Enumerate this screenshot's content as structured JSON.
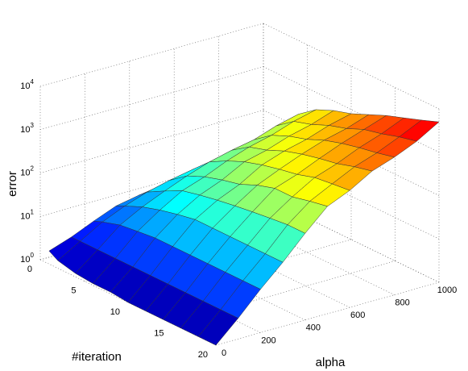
{
  "chart_data": {
    "type": "surface",
    "xlabel": "alpha",
    "ylabel": "#iteration",
    "zlabel": "error",
    "x": [
      0,
      100,
      200,
      300,
      400,
      500,
      600,
      700,
      800,
      900,
      1000
    ],
    "y": [
      1,
      2,
      4,
      6,
      8,
      10,
      12,
      14,
      16,
      18,
      20
    ],
    "z": [
      [
        2,
        3,
        5,
        8,
        10,
        12,
        14,
        16,
        18,
        20,
        22
      ],
      [
        1.5,
        3,
        6,
        10,
        15,
        20,
        25,
        30,
        40,
        50,
        60
      ],
      [
        1.2,
        3,
        8,
        15,
        25,
        40,
        60,
        80,
        100,
        150,
        200
      ],
      [
        1.1,
        3,
        9,
        20,
        40,
        60,
        100,
        150,
        200,
        300,
        400
      ],
      [
        1.1,
        3,
        10,
        25,
        50,
        80,
        150,
        200,
        300,
        400,
        600
      ],
      [
        1,
        3,
        10,
        30,
        60,
        100,
        200,
        300,
        400,
        600,
        800
      ],
      [
        1,
        3,
        10,
        30,
        70,
        150,
        250,
        400,
        600,
        800,
        1200
      ],
      [
        1,
        3,
        10,
        30,
        80,
        200,
        300,
        500,
        800,
        1200,
        1800
      ],
      [
        1,
        3,
        10,
        30,
        90,
        200,
        400,
        600,
        1000,
        1500,
        2500
      ],
      [
        1,
        3,
        10,
        30,
        100,
        250,
        450,
        800,
        1200,
        2000,
        3500
      ],
      [
        1,
        3,
        10,
        30,
        100,
        300,
        500,
        1000,
        1500,
        2500,
        5000
      ]
    ],
    "xlim": [
      0,
      1000
    ],
    "xticks": [
      0,
      200,
      400,
      600,
      800,
      1000
    ],
    "ylim": [
      0,
      20
    ],
    "yticks": [
      0,
      5,
      10,
      15,
      20
    ],
    "zlim": [
      1,
      10000
    ],
    "zscale": "log",
    "zticks": [
      {
        "value": 1,
        "label": "10^0"
      },
      {
        "value": 10,
        "label": "10^1"
      },
      {
        "value": 100,
        "label": "10^2"
      },
      {
        "value": 1000,
        "label": "10^3"
      },
      {
        "value": 10000,
        "label": "10^4"
      }
    ],
    "colormap": "jet",
    "grid": true
  }
}
